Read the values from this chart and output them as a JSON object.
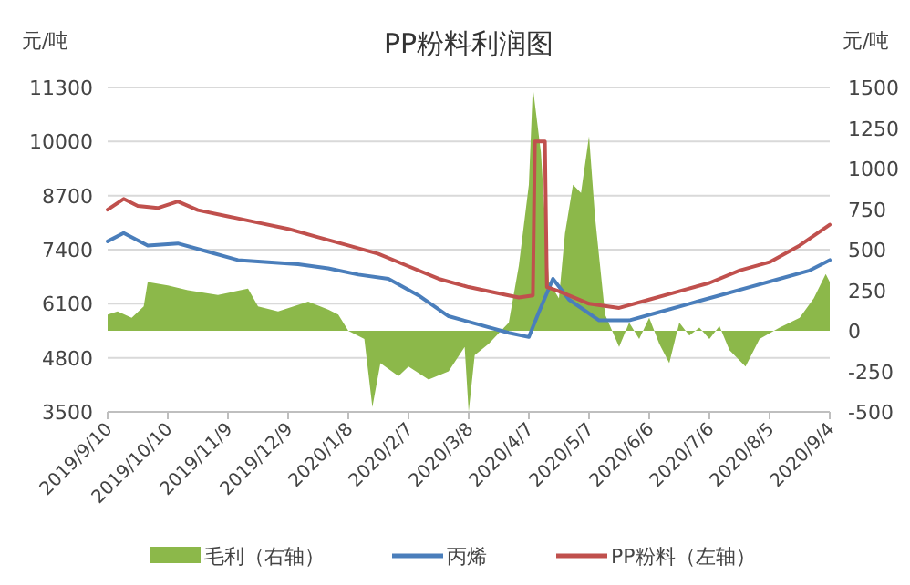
{
  "chart_data": {
    "type": "line",
    "title": "PP粉料利润图",
    "ylabel": "元/吨",
    "y2label": "元/吨",
    "xlim": [
      "2019-09-10",
      "2020-09-04"
    ],
    "xticks": [
      {
        "value": "2019-09-10",
        "label": "2019/9/10"
      },
      {
        "value": "2019-10-10",
        "label": "2019/10/10"
      },
      {
        "value": "2019-11-09",
        "label": "2019/11/9"
      },
      {
        "value": "2019-12-09",
        "label": "2019/12/9"
      },
      {
        "value": "2020-01-08",
        "label": "2020/1/8"
      },
      {
        "value": "2020-02-07",
        "label": "2020/2/7"
      },
      {
        "value": "2020-03-08",
        "label": "2020/3/8"
      },
      {
        "value": "2020-04-07",
        "label": "2020/4/7"
      },
      {
        "value": "2020-05-07",
        "label": "2020/5/7"
      },
      {
        "value": "2020-06-06",
        "label": "2020/6/6"
      },
      {
        "value": "2020-07-06",
        "label": "2020/7/6"
      },
      {
        "value": "2020-08-05",
        "label": "2020/8/5"
      },
      {
        "value": "2020-09-04",
        "label": "2020/9/4"
      }
    ],
    "ylim": [
      3500,
      11300
    ],
    "yticks": [
      3500,
      4800,
      6100,
      7400,
      8700,
      10000,
      11300
    ],
    "y2lim": [
      -500,
      1500
    ],
    "y2ticks": [
      -500,
      -250,
      0,
      250,
      500,
      750,
      1000,
      1250,
      1500
    ],
    "grid": "y",
    "legend": "bottom",
    "series": [
      {
        "name": "毛利（右轴）",
        "type": "area",
        "axis": "y2",
        "color": "#8cb84a",
        "x": [
          "2019-09-10",
          "2019-09-15",
          "2019-09-22",
          "2019-09-28",
          "2019-09-30",
          "2019-10-10",
          "2019-10-20",
          "2019-11-04",
          "2019-11-19",
          "2019-11-24",
          "2019-12-04",
          "2019-12-19",
          "2019-12-29",
          "2020-01-03",
          "2020-01-08",
          "2020-01-16",
          "2020-01-20",
          "2020-01-24",
          "2020-02-02",
          "2020-02-07",
          "2020-02-17",
          "2020-02-27",
          "2020-03-06",
          "2020-03-08",
          "2020-03-11",
          "2020-03-18",
          "2020-03-28",
          "2020-04-02",
          "2020-04-07",
          "2020-04-09",
          "2020-04-13",
          "2020-04-17",
          "2020-04-22",
          "2020-04-25",
          "2020-04-29",
          "2020-05-03",
          "2020-05-07",
          "2020-05-10",
          "2020-05-15",
          "2020-05-22",
          "2020-05-27",
          "2020-06-01",
          "2020-06-06",
          "2020-06-11",
          "2020-06-16",
          "2020-06-21",
          "2020-06-26",
          "2020-07-01",
          "2020-07-06",
          "2020-07-11",
          "2020-07-16",
          "2020-07-24",
          "2020-07-31",
          "2020-08-10",
          "2020-08-20",
          "2020-08-27",
          "2020-09-02",
          "2020-09-04"
        ],
        "values": [
          100,
          120,
          80,
          150,
          300,
          280,
          250,
          220,
          260,
          150,
          120,
          180,
          130,
          100,
          0,
          -50,
          -470,
          -200,
          -280,
          -220,
          -300,
          -250,
          -100,
          -500,
          -150,
          -80,
          50,
          400,
          900,
          1500,
          1100,
          300,
          200,
          600,
          900,
          850,
          1200,
          700,
          100,
          -100,
          50,
          -50,
          80,
          -80,
          -200,
          50,
          -30,
          20,
          -50,
          30,
          -120,
          -220,
          -50,
          20,
          80,
          200,
          350,
          300
        ]
      },
      {
        "name": "丙烯",
        "axis": "y",
        "color": "#4a7ebb",
        "x": [
          "2019-09-10",
          "2019-09-18",
          "2019-09-30",
          "2019-10-15",
          "2019-10-30",
          "2019-11-14",
          "2019-11-29",
          "2019-12-14",
          "2019-12-29",
          "2020-01-13",
          "2020-01-28",
          "2020-02-12",
          "2020-02-27",
          "2020-03-13",
          "2020-03-28",
          "2020-04-07",
          "2020-04-12",
          "2020-04-19",
          "2020-04-27",
          "2020-05-12",
          "2020-05-27",
          "2020-06-11",
          "2020-06-26",
          "2020-07-11",
          "2020-07-26",
          "2020-08-10",
          "2020-08-25",
          "2020-09-04"
        ],
        "values": [
          7600,
          7800,
          7500,
          7550,
          7350,
          7150,
          7100,
          7050,
          6950,
          6800,
          6700,
          6300,
          5800,
          5600,
          5400,
          5300,
          5900,
          6700,
          6200,
          5700,
          5700,
          5900,
          6100,
          6300,
          6500,
          6700,
          6900,
          7150
        ]
      },
      {
        "name": "PP粉料（左轴）",
        "axis": "y",
        "color": "#c0504d",
        "x": [
          "2019-09-10",
          "2019-09-18",
          "2019-09-25",
          "2019-10-05",
          "2019-10-15",
          "2019-10-25",
          "2019-11-09",
          "2019-11-24",
          "2019-12-09",
          "2019-12-24",
          "2020-01-08",
          "2020-01-23",
          "2020-02-07",
          "2020-02-22",
          "2020-03-08",
          "2020-03-23",
          "2020-04-02",
          "2020-04-09",
          "2020-04-10",
          "2020-04-15",
          "2020-04-16",
          "2020-04-22",
          "2020-05-07",
          "2020-05-22",
          "2020-06-06",
          "2020-06-21",
          "2020-07-06",
          "2020-07-21",
          "2020-08-05",
          "2020-08-20",
          "2020-09-04"
        ],
        "values": [
          8360,
          8620,
          8450,
          8400,
          8560,
          8350,
          8200,
          8050,
          7900,
          7700,
          7500,
          7300,
          7000,
          6700,
          6500,
          6350,
          6250,
          6300,
          10000,
          10000,
          6500,
          6400,
          6100,
          6000,
          6200,
          6400,
          6600,
          6900,
          7100,
          7500,
          8000
        ]
      }
    ]
  }
}
